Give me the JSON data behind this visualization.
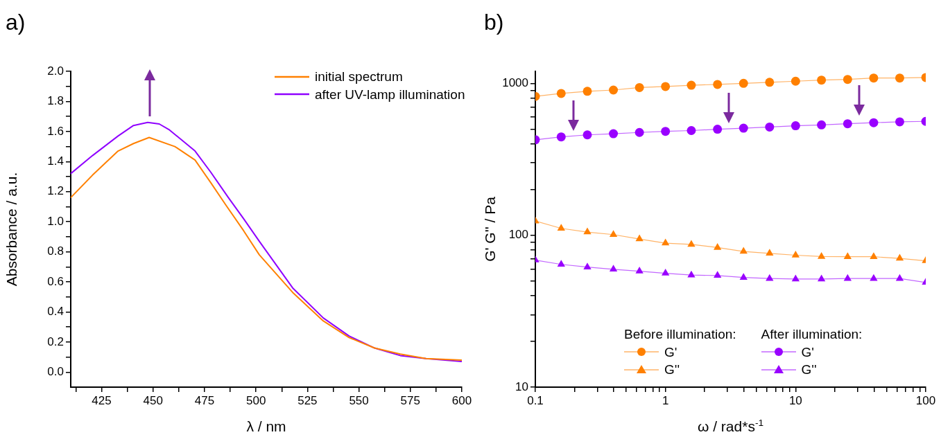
{
  "chart_data": [
    {
      "type": "line",
      "title": "a)",
      "xlabel": "λ / nm",
      "ylabel": "Absorbance / a.u.",
      "xlim": [
        410,
        600
      ],
      "ylim": [
        -0.1,
        2.0
      ],
      "xticks": [
        {
          "value": 412.5,
          "label": null
        },
        425,
        {
          "value": 437.5,
          "label": null
        },
        450,
        {
          "value": 462.5,
          "label": null
        },
        475,
        {
          "value": 487.5,
          "label": null
        },
        500,
        {
          "value": 512.5,
          "label": null
        },
        525,
        {
          "value": 537.5,
          "label": null
        },
        550,
        {
          "value": 562.5,
          "label": null
        },
        575,
        {
          "value": 587.5,
          "label": null
        },
        600
      ],
      "yticks": [
        {
          "value": 0,
          "label": "0.0"
        },
        {
          "value": 0.1,
          "label": null
        },
        {
          "value": 0.2,
          "label": "0.2"
        },
        {
          "value": 0.3,
          "label": null
        },
        {
          "value": 0.4,
          "label": "0.4"
        },
        {
          "value": 0.5,
          "label": null
        },
        {
          "value": 0.6,
          "label": "0.6"
        },
        {
          "value": 0.7,
          "label": null
        },
        {
          "value": 0.8,
          "label": "0.8"
        },
        {
          "value": 0.9,
          "label": null
        },
        {
          "value": 1.0,
          "label": "1.0"
        },
        {
          "value": 1.1,
          "label": null
        },
        {
          "value": 1.2,
          "label": "1.2"
        },
        {
          "value": 1.3,
          "label": null
        },
        {
          "value": 1.4,
          "label": "1.4"
        },
        {
          "value": 1.5,
          "label": null
        },
        {
          "value": 1.6,
          "label": "1.6"
        },
        {
          "value": 1.7,
          "label": null
        },
        {
          "value": 1.8,
          "label": "1.8"
        },
        {
          "value": 1.9,
          "label": null
        },
        {
          "value": 2.0,
          "label": "2.0"
        }
      ],
      "grid": false,
      "legend": "top right",
      "marker": "none",
      "line_style": "solid",
      "series": [
        {
          "name": "initial spectrum",
          "color": "#ff8000",
          "x": [
            410,
            420.6,
            433,
            440.5,
            448.1,
            460.6,
            470.4,
            478,
            485.4,
            494,
            501.6,
            517.8,
            532.7,
            545.2,
            557.6,
            570.1,
            582.6,
            600
          ],
          "values": [
            1.16,
            1.31,
            1.47,
            1.52,
            1.56,
            1.5,
            1.41,
            1.26,
            1.11,
            0.94,
            0.78,
            0.53,
            0.34,
            0.23,
            0.16,
            0.12,
            0.09,
            0.08
          ]
        },
        {
          "name": "after UV-lamp illumination",
          "color": "#8f00ff",
          "x": [
            410,
            420.6,
            433,
            440.5,
            447.4,
            453,
            458,
            470.4,
            478,
            486.6,
            494,
            501.6,
            517.8,
            532.7,
            545.2,
            557.6,
            570.1,
            582.6,
            600
          ],
          "values": [
            1.32,
            1.44,
            1.57,
            1.64,
            1.66,
            1.65,
            1.61,
            1.47,
            1.33,
            1.16,
            1.02,
            0.87,
            0.56,
            0.36,
            0.24,
            0.16,
            0.11,
            0.09,
            0.07
          ]
        }
      ]
    },
    {
      "type": "line",
      "title": "b)",
      "xlabel": "ω / rad*s$^{-1}$",
      "ylabel": "G' G'' / Pa",
      "log": "xy",
      "xlim": [
        0.1,
        100
      ],
      "ylim": [
        10,
        1200
      ],
      "xticks": [
        {
          "value": 0.1,
          "label": "0.1"
        },
        {
          "value": 0.2,
          "label": null
        },
        {
          "value": 0.3,
          "label": null
        },
        {
          "value": 0.4,
          "label": null
        },
        {
          "value": 0.5,
          "label": null
        },
        {
          "value": 0.6,
          "label": null
        },
        {
          "value": 0.7,
          "label": null
        },
        {
          "value": 0.8,
          "label": null
        },
        {
          "value": 0.9,
          "label": null
        },
        1,
        {
          "value": 2,
          "label": null
        },
        {
          "value": 3,
          "label": null
        },
        {
          "value": 4,
          "label": null
        },
        {
          "value": 5,
          "label": null
        },
        {
          "value": 6,
          "label": null
        },
        {
          "value": 7,
          "label": null
        },
        {
          "value": 8,
          "label": null
        },
        {
          "value": 9,
          "label": null
        },
        10,
        {
          "value": 20,
          "label": null
        },
        {
          "value": 30,
          "label": null
        },
        {
          "value": 40,
          "label": null
        },
        {
          "value": 50,
          "label": null
        },
        {
          "value": 60,
          "label": null
        },
        {
          "value": 70,
          "label": null
        },
        {
          "value": 80,
          "label": null
        },
        {
          "value": 90,
          "label": null
        },
        100
      ],
      "yticks": [
        10,
        {
          "value": 20,
          "label": null
        },
        {
          "value": 30,
          "label": null
        },
        {
          "value": 40,
          "label": null
        },
        {
          "value": 50,
          "label": null
        },
        {
          "value": 60,
          "label": null
        },
        {
          "value": 70,
          "label": null
        },
        {
          "value": 80,
          "label": null
        },
        {
          "value": 90,
          "label": null
        },
        100,
        {
          "value": 200,
          "label": null
        },
        {
          "value": 300,
          "label": null
        },
        {
          "value": 400,
          "label": null
        },
        {
          "value": 500,
          "label": null
        },
        {
          "value": 600,
          "label": null
        },
        {
          "value": 700,
          "label": null
        },
        {
          "value": 800,
          "label": null
        },
        {
          "value": 900,
          "label": null
        },
        1000
      ],
      "grid": false,
      "legend": "bottom",
      "line_style": "solid",
      "annotations": [
        "Before illumination:",
        "After illumination:"
      ],
      "x": [
        0.1,
        0.158,
        0.251,
        0.398,
        0.631,
        1,
        1.58,
        2.51,
        3.98,
        6.31,
        10,
        15.8,
        25.1,
        39.8,
        63.1,
        100
      ],
      "series": [
        {
          "name": "G'",
          "color": "#ff8000",
          "marker": "circle",
          "values": [
            821,
            858,
            887,
            904,
            938,
            953,
            972,
            984,
            1000,
            1016,
            1033,
            1050,
            1062,
            1084,
            1084,
            1093
          ]
        },
        {
          "name": "G''",
          "color": "#ff8000",
          "marker": "triangle",
          "values": [
            124,
            111,
            105,
            101,
            94.5,
            88.7,
            87,
            83,
            78.2,
            76.0,
            73.9,
            72.4,
            72.2,
            72.2,
            70.4,
            67.9
          ]
        },
        {
          "name": "G'",
          "color": "#9900ff",
          "marker": "circle",
          "values": [
            425,
            444,
            458,
            466,
            475,
            483,
            489,
            499,
            507,
            516,
            526,
            533,
            542,
            551,
            558,
            562
          ]
        },
        {
          "name": "G''",
          "color": "#9900ff",
          "marker": "triangle",
          "values": [
            68.6,
            64.3,
            61.7,
            59.7,
            58.0,
            56.2,
            54.7,
            54.3,
            52.7,
            51.9,
            51.5,
            51.5,
            51.9,
            51.9,
            51.9,
            48.9
          ]
        }
      ]
    }
  ]
}
